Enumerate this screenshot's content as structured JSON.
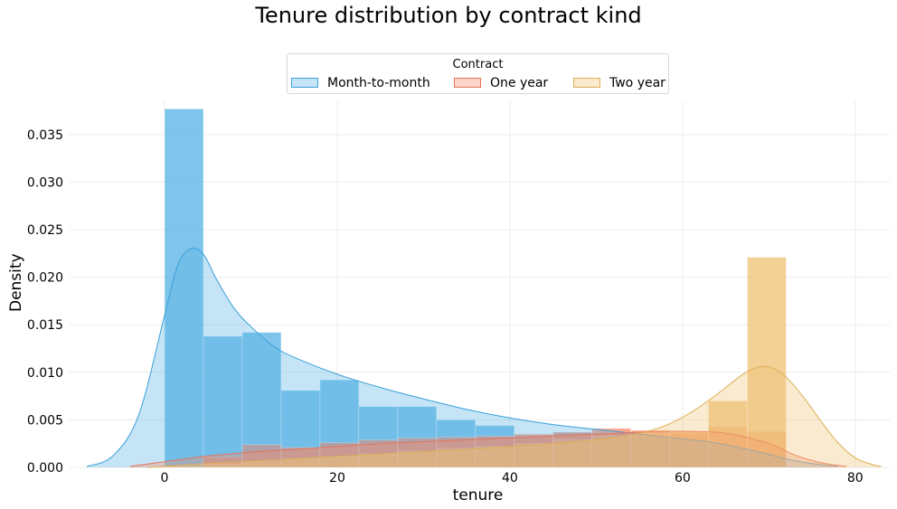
{
  "chart_data": {
    "type": "histogram+kde",
    "title": "Tenure distribution by contract kind",
    "xlabel": "tenure",
    "ylabel": "Density",
    "xlim": [
      -11,
      84
    ],
    "ylim": [
      0,
      0.0385
    ],
    "xticks": [
      0,
      20,
      40,
      60,
      80
    ],
    "yticks": [
      0.0,
      0.005,
      0.01,
      0.015,
      0.02,
      0.025,
      0.03,
      0.035
    ],
    "ytick_labels": [
      "0.000",
      "0.005",
      "0.010",
      "0.015",
      "0.020",
      "0.025",
      "0.030",
      "0.035"
    ],
    "grid": true,
    "legend": {
      "title": "Contract",
      "placement": "top-center"
    },
    "bin_edges": [
      0,
      4.5,
      9,
      13.5,
      18,
      22.5,
      27,
      31.5,
      36,
      40.5,
      45,
      49.5,
      54,
      58.5,
      63,
      67.5,
      72
    ],
    "series": [
      {
        "name": "Month-to-month",
        "color": "#5ab4e5",
        "edge": "#3aa0d8",
        "hist": [
          0.0377,
          0.0138,
          0.0142,
          0.0081,
          0.0092,
          0.0064,
          0.0064,
          0.005,
          0.0044,
          0.0033,
          0.0037,
          0.0035,
          0.003,
          0.0024,
          0.0019,
          0.0015
        ],
        "kde_x": [
          -9,
          -6,
          -3,
          0,
          1.5,
          3,
          4.5,
          6,
          8,
          10,
          13,
          16,
          20,
          25,
          30,
          35,
          40,
          45,
          50,
          55,
          60,
          63,
          66,
          69,
          72,
          75,
          78
        ],
        "kde_y": [
          0.0001,
          0.0012,
          0.0055,
          0.016,
          0.0212,
          0.023,
          0.0224,
          0.0198,
          0.0168,
          0.0148,
          0.0125,
          0.0112,
          0.0098,
          0.0084,
          0.0072,
          0.0061,
          0.0052,
          0.0045,
          0.004,
          0.0035,
          0.003,
          0.0027,
          0.0022,
          0.0016,
          0.0009,
          0.0004,
          0.0001
        ]
      },
      {
        "name": "One year",
        "color": "#fa8a6a",
        "edge": "#e8745a",
        "hist": [
          0.0001,
          0.0011,
          0.0024,
          0.0021,
          0.0026,
          0.0029,
          0.0031,
          0.0032,
          0.0033,
          0.0035,
          0.0037,
          0.0041,
          0.0039,
          0.0036,
          0.0043,
          0.0038
        ],
        "kde_x": [
          -4,
          0,
          5,
          10,
          15,
          20,
          25,
          30,
          35,
          40,
          45,
          50,
          55,
          60,
          65,
          70,
          73,
          76,
          79
        ],
        "kde_y": [
          0.0001,
          0.0006,
          0.0012,
          0.0016,
          0.0019,
          0.0022,
          0.0025,
          0.0027,
          0.0029,
          0.0031,
          0.0033,
          0.0035,
          0.0037,
          0.0038,
          0.0036,
          0.0025,
          0.0013,
          0.0005,
          0.0001
        ]
      },
      {
        "name": "Two year",
        "color": "#efc377",
        "edge": "#dfae55",
        "hist": [
          0.0001,
          0.0003,
          0.0006,
          0.0009,
          0.0011,
          0.0014,
          0.0017,
          0.002,
          0.0022,
          0.0025,
          0.0029,
          0.0033,
          0.0036,
          0.0038,
          0.007,
          0.0221
        ],
        "kde_x": [
          -2,
          5,
          15,
          25,
          35,
          45,
          50,
          55,
          58,
          61,
          64,
          67,
          69,
          70.5,
          72,
          74,
          76,
          78,
          80,
          82,
          83
        ],
        "kde_y": [
          0.0,
          0.0004,
          0.0009,
          0.0014,
          0.0019,
          0.0025,
          0.0029,
          0.0036,
          0.0044,
          0.0058,
          0.0077,
          0.0098,
          0.0106,
          0.0104,
          0.0095,
          0.0074,
          0.0049,
          0.0026,
          0.001,
          0.0003,
          0.0001
        ]
      }
    ]
  }
}
